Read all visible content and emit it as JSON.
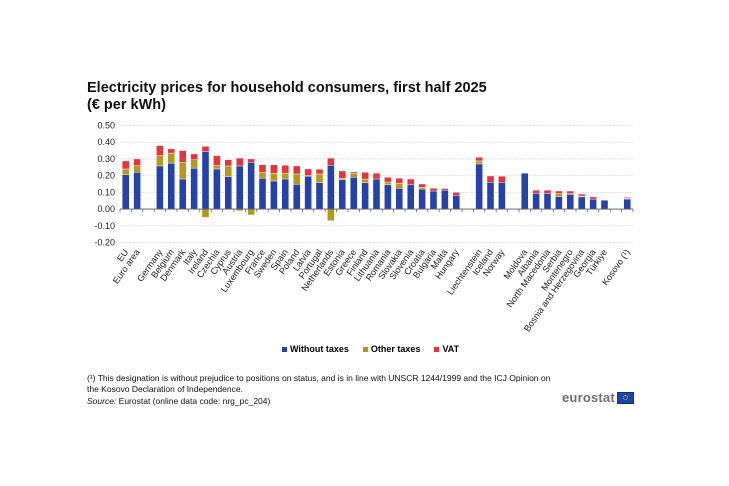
{
  "chart_data": {
    "type": "bar",
    "stacked": true,
    "title": "Electricity prices for household consumers, first half 2025",
    "subtitle": "(€ per kWh)",
    "xlabel": "",
    "ylabel": "",
    "ylim": [
      -0.2,
      0.5
    ],
    "yticks": [
      0.5,
      0.4,
      0.3,
      0.2,
      0.1,
      0.0,
      -0.1,
      -0.2
    ],
    "ytick_labels": [
      "0.50",
      "0.40",
      "0.30",
      "0.20",
      "0.10",
      "0.00",
      "-0.10",
      "-0.20"
    ],
    "grid": true,
    "legend_position": "bottom-center",
    "categories": [
      "EU",
      "Euro area",
      "",
      "Germany",
      "Belgium",
      "Denmark",
      "Italy",
      "Ireland",
      "Czechia",
      "Cyprus",
      "Austria",
      "Luxembourg",
      "France",
      "Sweden",
      "Spain",
      "Poland",
      "Latvia",
      "Portugal",
      "Netherlands",
      "Estonia",
      "Greece",
      "Finland",
      "Lithuania",
      "Romania",
      "Slovakia",
      "Slovenia",
      "Croatia",
      "Bulgaria",
      "Malta",
      "Hungary",
      "",
      "Liechtenstein",
      "Iceland",
      "Norway",
      "",
      "Moldova",
      "Albania",
      "North Macedonia",
      "Serbia",
      "Montenegro",
      "Bosnia and Herzegovina",
      "Georgia",
      "Türkiye",
      "",
      "Kosovo (¹)"
    ],
    "series": [
      {
        "name": "Without taxes",
        "color": "#2641a8",
        "values": [
          0.205,
          0.22,
          null,
          0.258,
          0.275,
          0.18,
          0.245,
          0.345,
          0.24,
          0.193,
          0.258,
          0.28,
          0.185,
          0.168,
          0.18,
          0.148,
          0.198,
          0.158,
          0.262,
          0.175,
          0.19,
          0.157,
          0.18,
          0.145,
          0.125,
          0.145,
          0.12,
          0.108,
          0.113,
          0.083,
          null,
          0.27,
          0.16,
          0.16,
          null,
          0.215,
          0.095,
          0.092,
          0.075,
          0.088,
          0.073,
          0.06,
          0.053,
          null,
          0.06
        ]
      },
      {
        "name": "Other taxes",
        "color": "#b39a1e",
        "values": [
          0.035,
          0.04,
          null,
          0.062,
          0.06,
          0.1,
          0.05,
          -0.05,
          0.022,
          0.065,
          -0.01,
          -0.035,
          0.035,
          0.047,
          0.035,
          0.062,
          0.002,
          0.052,
          -0.07,
          0.01,
          0.023,
          0.023,
          0.0,
          0.017,
          0.03,
          0.0,
          0.01,
          0.0,
          0.0,
          0.0,
          null,
          0.018,
          0.0,
          0.0,
          null,
          0.0,
          0.0,
          0.0,
          0.02,
          0.004,
          0.005,
          0.0,
          0.0,
          null,
          0.0
        ]
      },
      {
        "name": "VAT",
        "color": "#e2353f",
        "values": [
          0.048,
          0.04,
          null,
          0.06,
          0.025,
          0.07,
          0.035,
          0.03,
          0.058,
          0.037,
          0.047,
          0.02,
          0.045,
          0.05,
          0.047,
          0.048,
          0.04,
          0.028,
          0.043,
          0.043,
          0.009,
          0.04,
          0.035,
          0.028,
          0.03,
          0.035,
          0.02,
          0.017,
          0.01,
          0.017,
          null,
          0.022,
          0.038,
          0.037,
          null,
          0.0,
          0.018,
          0.021,
          0.013,
          0.016,
          0.012,
          0.013,
          0.0,
          null,
          0.015
        ]
      }
    ]
  },
  "header": {
    "title": "Electricity prices for household consumers, first half 2025",
    "subtitle": "(€ per kWh)"
  },
  "legend": [
    {
      "label": "Without taxes",
      "color": "#2641a8"
    },
    {
      "label": "Other taxes",
      "color": "#b39a1e"
    },
    {
      "label": "VAT",
      "color": "#e2353f"
    }
  ],
  "footnote": "(¹) This designation is without prejudice to positions on status, and is in line with UNSCR 1244/1999 and the ICJ Opinion on the Kosovo Declaration of Independence.",
  "source": {
    "label": "Source:",
    "text": " Eurostat (online data code: nrg_pc_204)"
  },
  "logo": {
    "text": "eurostat"
  }
}
